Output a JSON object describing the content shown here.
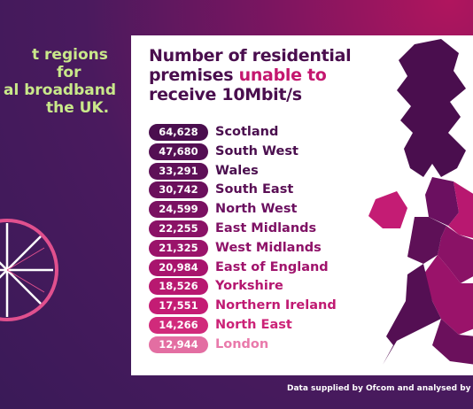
{
  "headline": {
    "lines": [
      "t regions",
      "for",
      "al broadband",
      "the UK."
    ]
  },
  "card": {
    "title": {
      "line1": "Number of residential",
      "line2": "premises",
      "highlight": "unable to",
      "line3": "receive 10Mbit/s"
    },
    "rows": [
      {
        "count": "64,628",
        "region": "Scotland",
        "pill_color": "#4a0e4e",
        "name_color": "#4a0e4e"
      },
      {
        "count": "47,680",
        "region": "South West",
        "pill_color": "#540f53",
        "name_color": "#4a0e4e"
      },
      {
        "count": "33,291",
        "region": "Wales",
        "pill_color": "#5e1057",
        "name_color": "#4a0e4e"
      },
      {
        "count": "30,742",
        "region": "South East",
        "pill_color": "#6b105c",
        "name_color": "#5a0f55"
      },
      {
        "count": "24,599",
        "region": "North West",
        "pill_color": "#7a1161",
        "name_color": "#6b1060"
      },
      {
        "count": "22,255",
        "region": "East Midlands",
        "pill_color": "#8a1266",
        "name_color": "#7e1164"
      },
      {
        "count": "21,325",
        "region": "West Midlands",
        "pill_color": "#9a136a",
        "name_color": "#8e1268"
      },
      {
        "count": "20,984",
        "region": "East of England",
        "pill_color": "#a8146d",
        "name_color": "#a0136c"
      },
      {
        "count": "18,526",
        "region": "Yorkshire",
        "pill_color": "#b81870",
        "name_color": "#b4166f"
      },
      {
        "count": "17,551",
        "region": "Northern Ireland",
        "pill_color": "#c41c74",
        "name_color": "#c01a72"
      },
      {
        "count": "14,266",
        "region": "North East",
        "pill_color": "#d12a7b",
        "name_color": "#cc2277"
      },
      {
        "count": "12,944",
        "region": "London",
        "pill_color": "#e36ea2",
        "name_color": "#e97aab"
      }
    ]
  },
  "footer": "Data supplied by Ofcom and analysed by N"
}
